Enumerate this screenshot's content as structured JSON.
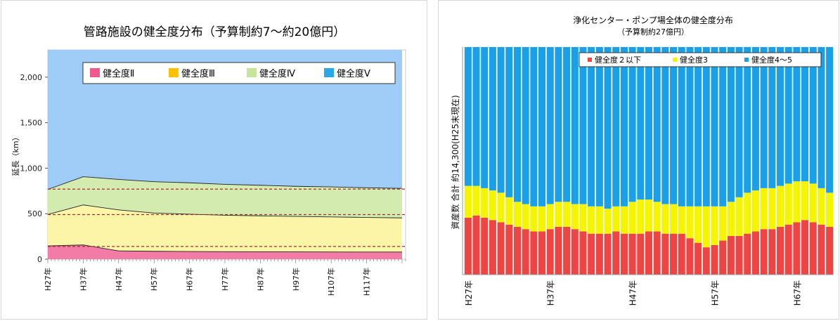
{
  "chart_data": [
    {
      "type": "area",
      "title": "管路施設の健全度分布（予算制約7～約20億円）",
      "ylabel": "延長（km）",
      "ylim": [
        0,
        2300
      ],
      "yticks": [
        "0",
        "500",
        "1,000",
        "1,500",
        "2,000"
      ],
      "ytick_values": [
        0,
        500,
        1000,
        1500,
        2000
      ],
      "x_tick_labels": [
        "H27年",
        "H37年",
        "H47年",
        "H57年",
        "H67年",
        "H77年",
        "H87年",
        "H97年",
        "H107年",
        "H117年"
      ],
      "x_years": [
        27,
        37,
        47,
        57,
        67,
        77,
        87,
        97,
        107,
        117
      ],
      "x": [
        27,
        37,
        47,
        57,
        67,
        77,
        87,
        97,
        107,
        117,
        127
      ],
      "xlim": [
        27,
        128
      ],
      "legend_position": "top",
      "series": [
        {
          "name": "健全度Ⅱ",
          "color": "#f47aa8",
          "values": [
            150,
            160,
            95,
            90,
            88,
            86,
            85,
            84,
            83,
            82,
            82
          ]
        },
        {
          "name": "健全度Ⅲ",
          "color": "#fbf5a8",
          "values": [
            345,
            440,
            450,
            420,
            410,
            400,
            395,
            390,
            385,
            380,
            375
          ]
        },
        {
          "name": "健全度Ⅳ",
          "color": "#d4ebb0",
          "values": [
            275,
            310,
            335,
            345,
            345,
            340,
            336,
            330,
            330,
            326,
            325
          ]
        },
        {
          "name": "健全度Ⅴ",
          "color": "#9fccf7",
          "values": [
            1530,
            1390,
            1420,
            1445,
            1457,
            1474,
            1484,
            1496,
            1502,
            1512,
            1518
          ]
        }
      ],
      "legend_colors": [
        "#f0598d",
        "#ffc000",
        "#c4e59a",
        "#2aa7e8"
      ],
      "reference_lines": [
        770,
        490,
        140
      ],
      "reference_color": "#a33030"
    },
    {
      "type": "bar",
      "stacked": "percent",
      "title": "浄化センター・ポンプ場全体の健全度分布",
      "subtitle": "（予算制約27億円）",
      "ylabel": "資産数 合計 約14,300(H25末現在)",
      "x_tick_labels": [
        "H27年",
        "H37年",
        "H47年",
        "H57年",
        "H67年"
      ],
      "tick_every": 10,
      "legend_position": "top",
      "series": [
        {
          "name": "健全度２以下",
          "color": "#ef4444",
          "values": [
            25,
            26,
            25,
            24,
            23,
            22,
            21,
            20,
            19,
            19,
            20,
            21,
            21,
            20,
            19,
            18,
            18,
            18,
            19,
            18,
            18,
            18,
            19,
            19,
            18,
            18,
            18,
            16,
            14,
            12,
            13,
            15,
            17,
            17,
            18,
            19,
            20,
            20,
            21,
            22,
            23,
            24,
            23,
            22,
            21
          ]
        },
        {
          "name": "健全度3",
          "color": "#f5f500",
          "values": [
            14,
            13,
            13,
            13,
            13,
            12,
            11,
            11,
            11,
            11,
            11,
            11,
            11,
            11,
            12,
            12,
            12,
            11,
            11,
            12,
            14,
            15,
            14,
            13,
            13,
            13,
            12,
            14,
            16,
            18,
            17,
            15,
            15,
            17,
            18,
            18,
            18,
            18,
            18,
            18,
            18,
            17,
            17,
            16,
            15
          ]
        },
        {
          "name": "健全度4～5",
          "color": "#1aa0e8",
          "values": [
            61,
            61,
            62,
            63,
            64,
            66,
            68,
            69,
            70,
            70,
            69,
            68,
            68,
            69,
            69,
            70,
            70,
            71,
            70,
            70,
            68,
            67,
            67,
            68,
            69,
            69,
            70,
            70,
            70,
            70,
            70,
            70,
            68,
            66,
            64,
            63,
            62,
            62,
            61,
            60,
            59,
            59,
            60,
            62,
            64
          ]
        }
      ]
    }
  ]
}
